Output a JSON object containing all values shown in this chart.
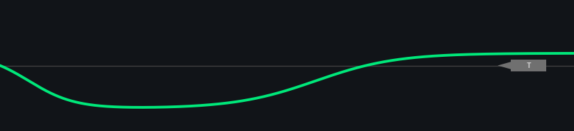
{
  "background_color": "#111418",
  "line_color": "#00e87a",
  "line_width": 2.8,
  "hline_color": "#404040",
  "hline_linewidth": 1.0,
  "figsize": [
    8.26,
    1.89
  ],
  "dpi": 100,
  "arrow_color": "#707070",
  "arrow_text_color": "#cccccc",
  "ylim": [
    -1.6,
    1.6
  ],
  "xlim": [
    0,
    1
  ]
}
